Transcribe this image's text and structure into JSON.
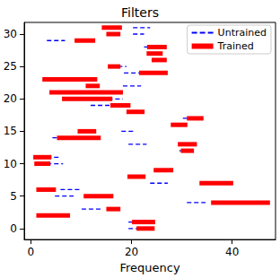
{
  "chart_data": {
    "type": "segments",
    "title": "Filters",
    "x_label": "Frequency",
    "xlim": [
      -1.3,
      48.6
    ],
    "xticks": [
      0,
      20,
      40
    ],
    "ylim": [
      -1.7,
      31.8
    ],
    "yticks": [
      0,
      5,
      10,
      15,
      20,
      25,
      30
    ],
    "y": [
      0,
      1,
      2,
      3,
      4,
      5,
      6,
      7,
      8,
      9,
      10,
      11,
      12,
      13,
      14,
      15,
      16,
      17,
      18,
      19,
      20,
      21,
      22,
      23,
      24,
      25,
      26,
      27,
      28,
      29,
      30,
      31
    ],
    "legend": "upper right",
    "grid": false,
    "series": [
      {
        "name": "Untrained",
        "color": "#0000ff",
        "line_style": "dashed",
        "values": [
          [
            19.4,
            22.4
          ],
          [
            19.4,
            23.1
          ],
          null,
          [
            10.1,
            13.9
          ],
          [
            31,
            34.7
          ],
          [
            4.8,
            8.5
          ],
          [
            5.9,
            9.8
          ],
          [
            23.7,
            27.2
          ],
          null,
          null,
          [
            3.2,
            6.4
          ],
          [
            3.2,
            5.8
          ],
          [
            29.5,
            32.4
          ],
          [
            19.4,
            23
          ],
          [
            4.3,
            9.4
          ],
          [
            18,
            20.6
          ],
          null,
          [
            30.2,
            31.8
          ],
          null,
          [
            11.9,
            16
          ],
          [
            12.5,
            18.3
          ],
          null,
          [
            18.3,
            21.9
          ],
          null,
          [
            18.5,
            21.5
          ],
          [
            17.3,
            19
          ],
          [
            24.7,
            26.9
          ],
          null,
          [
            22.5,
            24.5
          ],
          [
            3.2,
            6.8
          ],
          [
            20.3,
            22.5
          ],
          [
            20.3,
            23.7
          ]
        ]
      },
      {
        "name": "Trained",
        "color": "#ff0000",
        "line_style": "solid",
        "values": [
          [
            21,
            24.6
          ],
          [
            20.1,
            24.7
          ],
          [
            1.1,
            7.8
          ],
          [
            15,
            17.8
          ],
          [
            35.8,
            47.5
          ],
          [
            10.5,
            16.4
          ],
          [
            1.1,
            5
          ],
          [
            33.5,
            40.2
          ],
          [
            19.2,
            22.8
          ],
          [
            24.4,
            28.3
          ],
          [
            0.7,
            3.9
          ],
          [
            0.5,
            4.1
          ],
          [
            29.8,
            32.4
          ],
          [
            29.2,
            33
          ],
          [
            5.2,
            13.9
          ],
          [
            9.3,
            13
          ],
          [
            27.8,
            31.1
          ],
          [
            31,
            34.3
          ],
          [
            19,
            22.6
          ],
          [
            15.8,
            19.8
          ],
          [
            6.2,
            16.2
          ],
          [
            3.7,
            18.3
          ],
          [
            10.9,
            13.7
          ],
          [
            2.3,
            13.2
          ],
          [
            21.5,
            27.2
          ],
          [
            15.3,
            17.8
          ],
          [
            24,
            27
          ],
          [
            23,
            26.2
          ],
          [
            23.1,
            27
          ],
          [
            8.7,
            12.8
          ],
          [
            15,
            17.8
          ],
          [
            14.1,
            18.1
          ]
        ]
      }
    ]
  }
}
